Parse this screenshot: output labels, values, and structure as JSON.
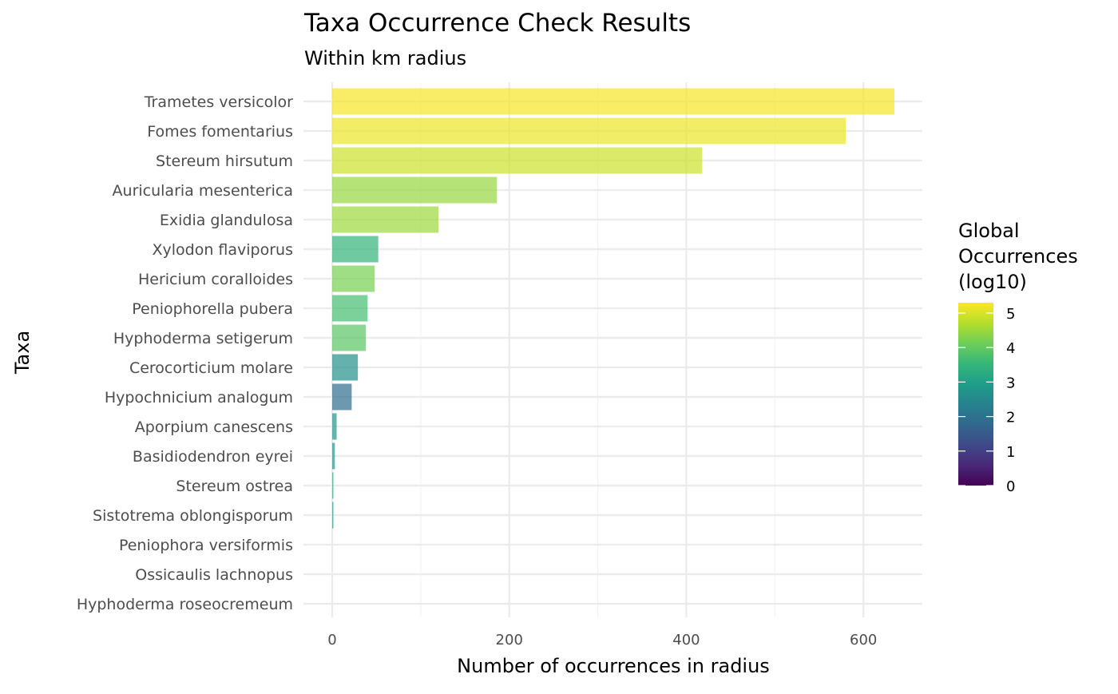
{
  "chart_data": {
    "type": "bar",
    "orientation": "horizontal",
    "title": "Taxa Occurrence Check Results",
    "subtitle": "Within  km radius",
    "xlabel": "Number of occurrences in radius",
    "ylabel": "Taxa",
    "xlim": [
      0,
      665
    ],
    "x_ticks": [
      0,
      200,
      400,
      600
    ],
    "grid": true,
    "categories": [
      "Trametes versicolor",
      "Fomes fomentarius",
      "Stereum hirsutum",
      "Auricularia mesenterica",
      "Exidia glandulosa",
      "Xylodon flaviporus",
      "Hericium coralloides",
      "Peniophorella pubera",
      "Hyphoderma setigerum",
      "Cerocorticium molare",
      "Hypochnicium analogum",
      "Aporpium canescens",
      "Basidiodendron eyrei",
      "Stereum ostrea",
      "Sistotrema oblongisporum",
      "Peniophora versiformis",
      "Ossicaulis lachnopus",
      "Hyphoderma roseocremeum"
    ],
    "values": [
      635,
      580,
      418,
      186,
      120,
      52,
      48,
      40,
      38,
      29,
      22,
      5,
      3,
      1,
      1,
      0,
      0,
      0
    ],
    "color_values": [
      5.25,
      5.15,
      4.9,
      4.45,
      4.5,
      3.45,
      4.2,
      3.7,
      3.9,
      2.65,
      1.9,
      2.8,
      2.8,
      3.2,
      3.0,
      null,
      null,
      null
    ],
    "bar_opacity": 0.7,
    "legend": {
      "title": "Global\nOccurrences\n(log10)",
      "position": "right",
      "ticks": [
        0,
        1,
        2,
        3,
        4,
        5
      ],
      "range": [
        0,
        5.3
      ],
      "palette": [
        "#440154",
        "#482878",
        "#3e4a89",
        "#31688e",
        "#26828e",
        "#1f9e89",
        "#35b779",
        "#6ece58",
        "#b5de2b",
        "#fde725"
      ]
    }
  }
}
